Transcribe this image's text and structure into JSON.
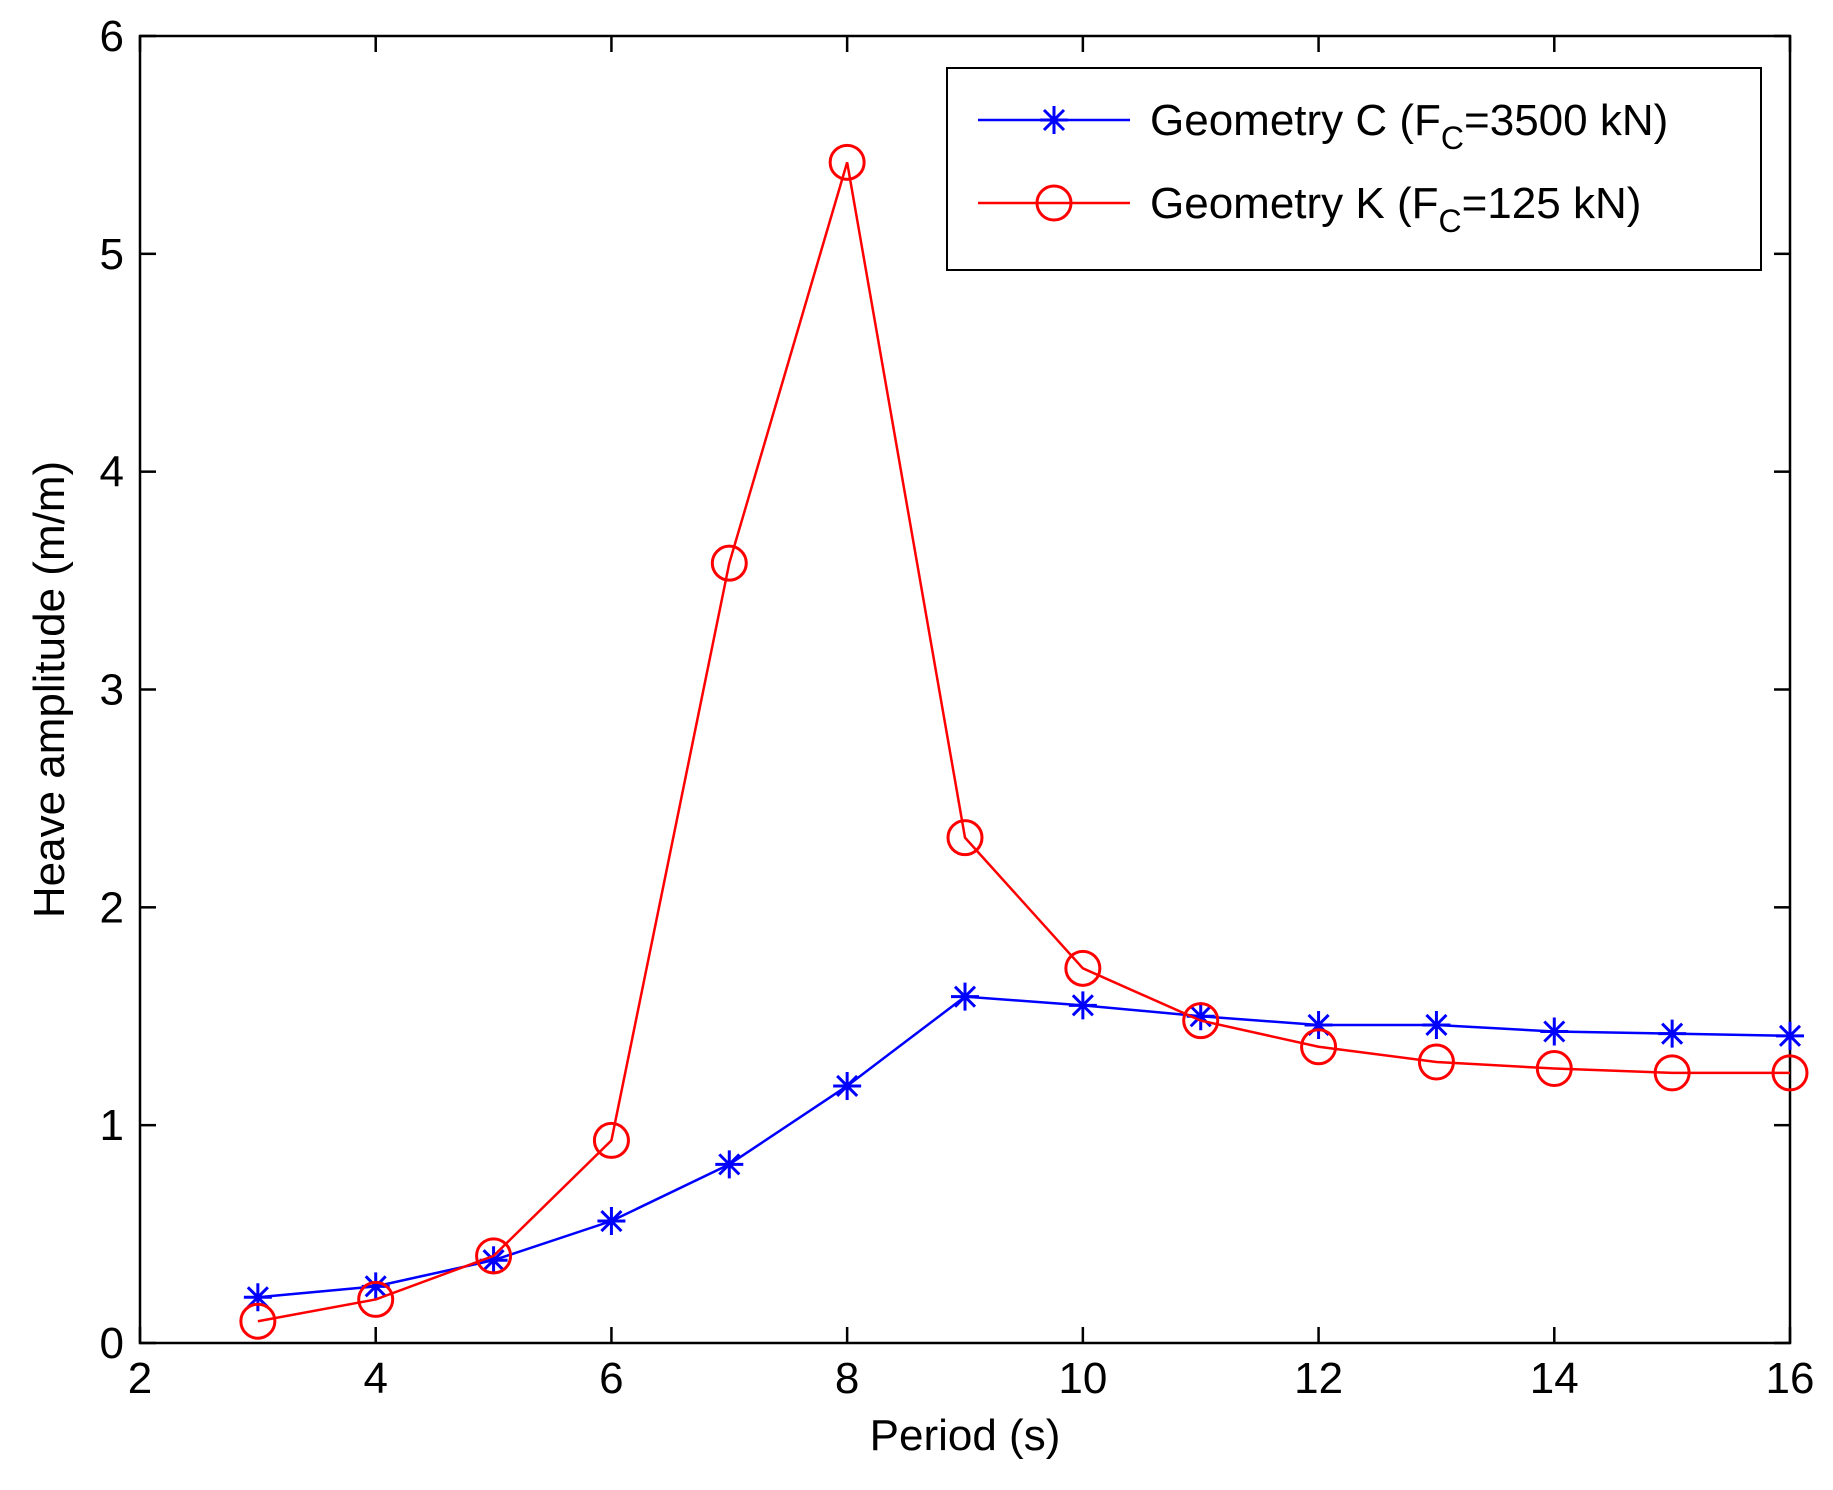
{
  "chart_data": {
    "type": "line",
    "title": "",
    "xlabel": "Period (s)",
    "ylabel": "Heave amplitude (m/m)",
    "xlim": [
      2,
      16
    ],
    "ylim": [
      0,
      6
    ],
    "xticks": [
      "2",
      "4",
      "6",
      "8",
      "10",
      "12",
      "14",
      "16"
    ],
    "yticks": [
      "0",
      "1",
      "2",
      "3",
      "4",
      "5",
      "6"
    ],
    "grid": false,
    "legend_position": "top-right",
    "series": [
      {
        "name": "Geometry C",
        "legend": {
          "prefix": "Geometry C (F",
          "sub": "C",
          "suffix": "=3500 kN)"
        },
        "color": "#0000ff",
        "marker": "asterisk",
        "x": [
          3,
          4,
          5,
          6,
          7,
          8,
          9,
          10,
          11,
          12,
          13,
          14,
          15,
          16
        ],
        "values": [
          0.21,
          0.26,
          0.38,
          0.56,
          0.82,
          1.18,
          1.59,
          1.55,
          1.5,
          1.46,
          1.46,
          1.43,
          1.42,
          1.41
        ]
      },
      {
        "name": "Geometry K",
        "legend": {
          "prefix": "Geometry K (F",
          "sub": "C",
          "suffix": "=125 kN)"
        },
        "color": "#ff0000",
        "marker": "circle",
        "x": [
          3,
          4,
          5,
          6,
          7,
          8,
          9,
          10,
          11,
          12,
          13,
          14,
          15,
          16
        ],
        "values": [
          0.1,
          0.2,
          0.4,
          0.93,
          3.58,
          5.42,
          2.32,
          1.72,
          1.48,
          1.36,
          1.29,
          1.26,
          1.24,
          1.24
        ]
      }
    ]
  }
}
